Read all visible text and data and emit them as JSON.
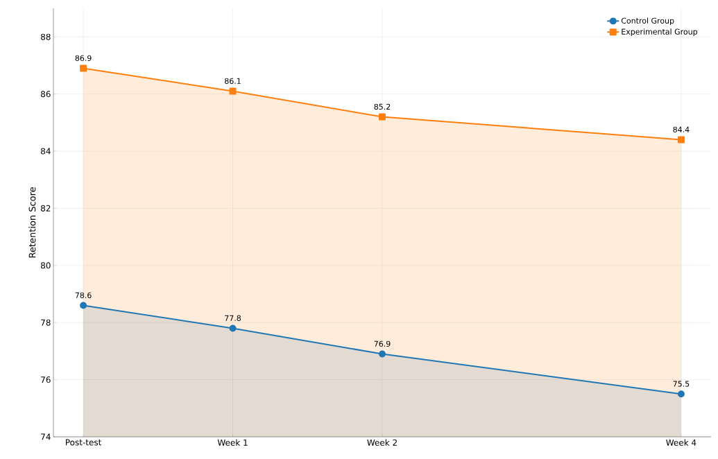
{
  "chart_data": {
    "type": "area",
    "ylabel": "Retention Score",
    "categories": [
      "Post-test",
      "Week 1",
      "Week 2",
      null,
      "Week 4"
    ],
    "ylim": [
      74,
      89
    ],
    "yticks": [
      74,
      76,
      78,
      80,
      82,
      84,
      86,
      88
    ],
    "series": [
      {
        "name": "Control Group",
        "color": "#1f77b4",
        "marker": "circle",
        "values": [
          78.6,
          77.8,
          76.9,
          null,
          75.5
        ]
      },
      {
        "name": "Experimental Group",
        "color": "#ff7f0e",
        "marker": "square",
        "values": [
          86.9,
          86.1,
          85.2,
          null,
          84.4
        ]
      }
    ],
    "data_labels": true,
    "grid": true,
    "legend": "top right",
    "line_style": "solid"
  }
}
